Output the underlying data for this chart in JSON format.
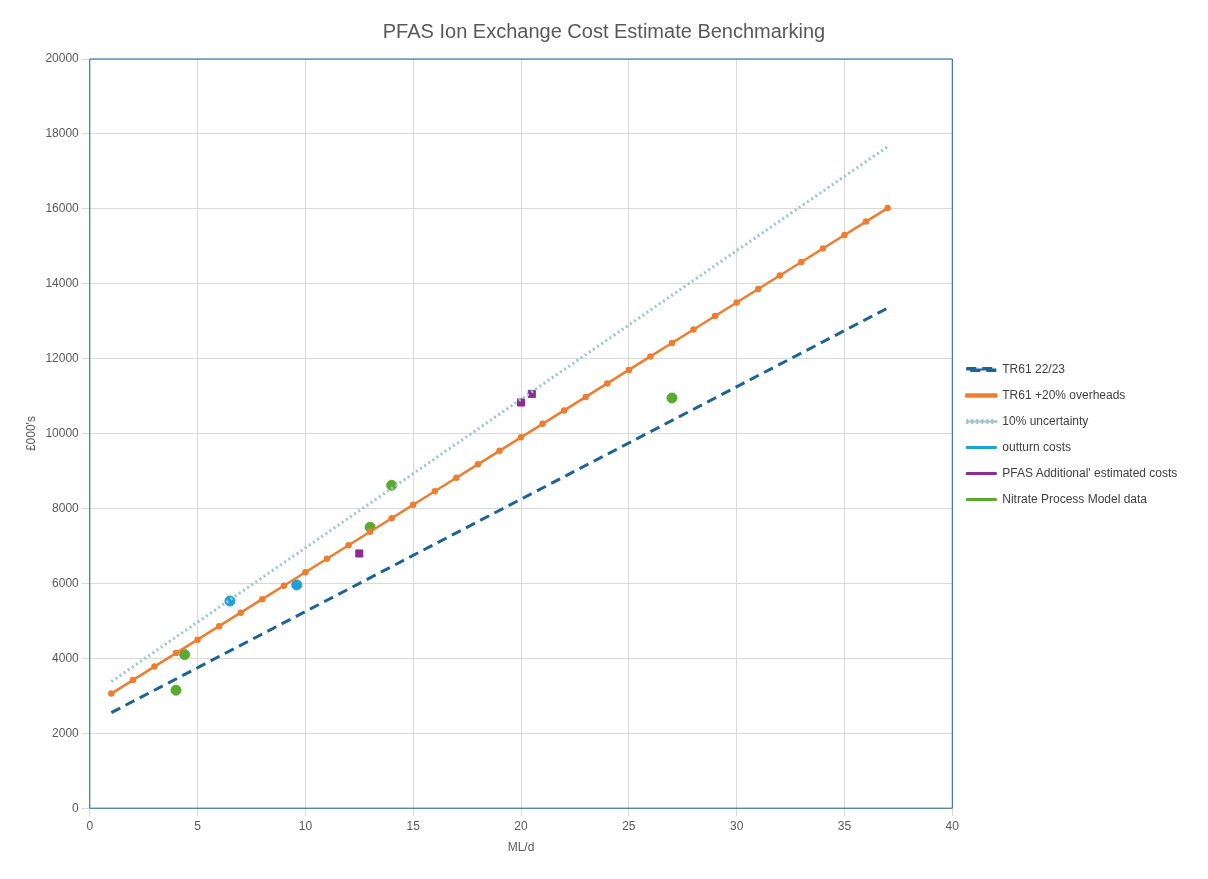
{
  "chart_data": {
    "type": "line",
    "title": "PFAS Ion Exchange Cost Estimate Benchmarking",
    "xlabel": "ML/d",
    "ylabel": "£000's",
    "xlim": [
      0,
      40
    ],
    "xticks": [
      0,
      5,
      10,
      15,
      20,
      25,
      30,
      35,
      40
    ],
    "ylim": [
      0,
      20000
    ],
    "yticks": [
      0,
      2000,
      4000,
      6000,
      8000,
      10000,
      12000,
      14000,
      16000,
      18000,
      20000
    ],
    "grid": true,
    "legend": "right",
    "series": [
      {
        "name": "TR61 22/23",
        "type": "line",
        "color": "#1f6391",
        "line_style": "dashed",
        "marker": "none",
        "x": [
          1,
          37
        ],
        "values": [
          2550,
          13350
        ]
      },
      {
        "name": "TR61 +20% overheads",
        "type": "line",
        "color": "#ed7d31",
        "line_style": "solid",
        "marker": "circle",
        "x": [
          1,
          2,
          3,
          4,
          5,
          6,
          7,
          8,
          9,
          10,
          11,
          12,
          13,
          14,
          15,
          16,
          17,
          18,
          19,
          20,
          21,
          22,
          23,
          24,
          25,
          26,
          27,
          28,
          29,
          30,
          31,
          32,
          33,
          34,
          35,
          36,
          37
        ],
        "values": [
          3060,
          3420,
          3780,
          4140,
          4500,
          4860,
          5220,
          5580,
          5940,
          6300,
          6660,
          7020,
          7380,
          7740,
          8100,
          8460,
          8820,
          9180,
          9540,
          9900,
          10260,
          10620,
          10980,
          11340,
          11700,
          12060,
          12420,
          12780,
          13140,
          13500,
          13860,
          14220,
          14580,
          14940,
          15300,
          15660,
          16020
        ]
      },
      {
        "name": "10% uncertainty",
        "type": "line",
        "color": "#9dc3cf",
        "line_style": "dotted",
        "marker": "none",
        "x": [
          1,
          37
        ],
        "values": [
          3380,
          17660
        ]
      },
      {
        "name": "outturn costs",
        "type": "scatter",
        "color": "#1ba1d8",
        "marker": "circle",
        "x": [
          6.5,
          9.6
        ],
        "values": [
          5530,
          5960
        ]
      },
      {
        "name": "PFAS Additional' estimated costs",
        "type": "scatter",
        "color": "#8e2c8e",
        "marker": "square",
        "x": [
          12.5,
          20,
          20.5
        ],
        "values": [
          6800,
          10830,
          11060
        ]
      },
      {
        "name": "Nitrate Process Model data",
        "type": "scatter",
        "color": "#5aaa32",
        "marker": "circle",
        "x": [
          4,
          4.4,
          13,
          14,
          27
        ],
        "values": [
          3150,
          4100,
          7500,
          8620,
          10950
        ]
      }
    ]
  }
}
